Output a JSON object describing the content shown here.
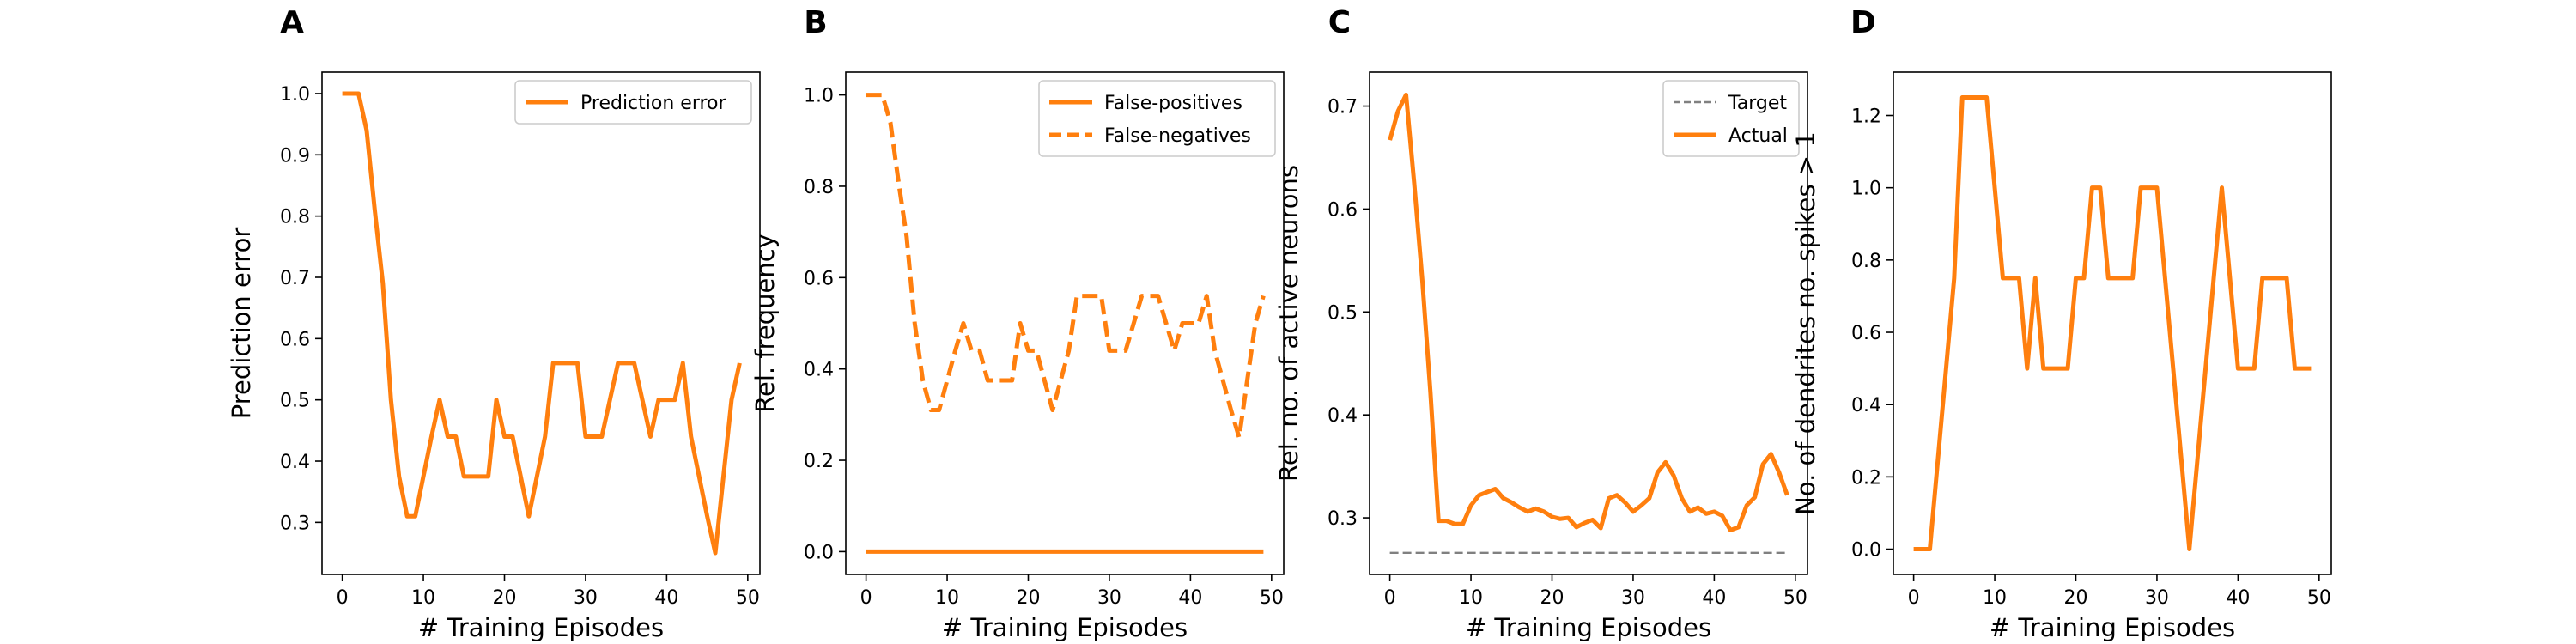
{
  "chart_data": [
    {
      "type": "line",
      "panel": "A",
      "title": "",
      "xlabel": "# Training Episodes",
      "ylabel": "Prediction error",
      "xlim": [
        -2.5,
        51.5
      ],
      "ylim": [
        0.215,
        1.035
      ],
      "xticks": [
        0,
        10,
        20,
        30,
        40,
        50
      ],
      "yticks": [
        0.3,
        0.4,
        0.5,
        0.6,
        0.7,
        0.8,
        0.9,
        1.0
      ],
      "ytick_labels": [
        "0.3",
        "0.4",
        "0.5",
        "0.6",
        "0.7",
        "0.8",
        "0.9",
        "1.0"
      ],
      "legend_placement": "top-right",
      "grid": false,
      "series": [
        {
          "name": "Prediction error",
          "color": "#ff7f0e",
          "style": "solid",
          "x": [
            0,
            1,
            2,
            3,
            4,
            5,
            6,
            7,
            8,
            9,
            10,
            11,
            12,
            13,
            14,
            15,
            16,
            17,
            18,
            19,
            20,
            21,
            22,
            23,
            24,
            25,
            26,
            27,
            28,
            29,
            30,
            31,
            32,
            33,
            34,
            35,
            36,
            37,
            38,
            39,
            40,
            41,
            42,
            43,
            44,
            45,
            46,
            47,
            48,
            49
          ],
          "values": [
            1.0,
            1.0,
            1.0,
            0.94,
            0.81,
            0.69,
            0.5,
            0.375,
            0.31,
            0.31,
            0.375,
            0.44,
            0.5,
            0.44,
            0.44,
            0.375,
            0.375,
            0.375,
            0.375,
            0.5,
            0.44,
            0.44,
            0.375,
            0.31,
            0.375,
            0.44,
            0.56,
            0.56,
            0.56,
            0.56,
            0.44,
            0.44,
            0.44,
            0.5,
            0.56,
            0.56,
            0.56,
            0.5,
            0.44,
            0.5,
            0.5,
            0.5,
            0.56,
            0.44,
            0.375,
            0.31,
            0.25,
            0.375,
            0.5,
            0.56
          ]
        }
      ]
    },
    {
      "type": "line",
      "panel": "B",
      "title": "",
      "xlabel": "# Training Episodes",
      "ylabel": "Rel. frequency",
      "xlim": [
        -2.5,
        51.5
      ],
      "ylim": [
        -0.05,
        1.05
      ],
      "xticks": [
        0,
        10,
        20,
        30,
        40,
        50
      ],
      "yticks": [
        0.0,
        0.2,
        0.4,
        0.6,
        0.8,
        1.0
      ],
      "ytick_labels": [
        "0.0",
        "0.2",
        "0.4",
        "0.6",
        "0.8",
        "1.0"
      ],
      "legend_placement": "top-right",
      "grid": false,
      "series": [
        {
          "name": "False-positives",
          "color": "#ff7f0e",
          "style": "solid",
          "x": [
            0,
            49
          ],
          "values": [
            0.0,
            0.0
          ]
        },
        {
          "name": "False-negatives",
          "color": "#ff7f0e",
          "style": "dashed",
          "x": [
            0,
            1,
            2,
            3,
            4,
            5,
            6,
            7,
            8,
            9,
            10,
            11,
            12,
            13,
            14,
            15,
            16,
            17,
            18,
            19,
            20,
            21,
            22,
            23,
            24,
            25,
            26,
            27,
            28,
            29,
            30,
            31,
            32,
            33,
            34,
            35,
            36,
            37,
            38,
            39,
            40,
            41,
            42,
            43,
            44,
            45,
            46,
            47,
            48,
            49
          ],
          "values": [
            1.0,
            1.0,
            1.0,
            0.94,
            0.81,
            0.69,
            0.5,
            0.375,
            0.31,
            0.31,
            0.375,
            0.44,
            0.5,
            0.44,
            0.44,
            0.375,
            0.375,
            0.375,
            0.375,
            0.5,
            0.44,
            0.44,
            0.375,
            0.31,
            0.375,
            0.44,
            0.56,
            0.56,
            0.56,
            0.56,
            0.44,
            0.44,
            0.44,
            0.5,
            0.56,
            0.56,
            0.56,
            0.5,
            0.44,
            0.5,
            0.5,
            0.5,
            0.56,
            0.44,
            0.375,
            0.31,
            0.25,
            0.375,
            0.5,
            0.56
          ]
        }
      ]
    },
    {
      "type": "line",
      "panel": "C",
      "title": "",
      "xlabel": "# Training Episodes",
      "ylabel": "Rel. no. of active neurons",
      "xlim": [
        -2.5,
        51.5
      ],
      "ylim": [
        0.245,
        0.733
      ],
      "xticks": [
        0,
        10,
        20,
        30,
        40,
        50
      ],
      "yticks": [
        0.3,
        0.4,
        0.5,
        0.6,
        0.7
      ],
      "ytick_labels": [
        "0.3",
        "0.4",
        "0.5",
        "0.6",
        "0.7"
      ],
      "legend_placement": "top-right",
      "grid": false,
      "series": [
        {
          "name": "Target",
          "color": "#808080",
          "style": "dashed",
          "x": [
            0,
            49
          ],
          "values": [
            0.266,
            0.266
          ]
        },
        {
          "name": "Actual",
          "color": "#ff7f0e",
          "style": "solid",
          "x": [
            0,
            1,
            2,
            3,
            4,
            5,
            6,
            7,
            8,
            9,
            10,
            11,
            12,
            13,
            14,
            15,
            16,
            17,
            18,
            19,
            20,
            21,
            22,
            23,
            24,
            25,
            26,
            27,
            28,
            29,
            30,
            31,
            32,
            33,
            34,
            35,
            36,
            37,
            38,
            39,
            40,
            41,
            42,
            43,
            44,
            45,
            46,
            47,
            48,
            49
          ],
          "values": [
            0.667,
            0.695,
            0.711,
            0.625,
            0.531,
            0.422,
            0.297,
            0.297,
            0.294,
            0.294,
            0.312,
            0.322,
            0.325,
            0.328,
            0.319,
            0.315,
            0.31,
            0.306,
            0.309,
            0.306,
            0.301,
            0.299,
            0.3,
            0.291,
            0.295,
            0.298,
            0.29,
            0.319,
            0.322,
            0.315,
            0.306,
            0.312,
            0.319,
            0.344,
            0.354,
            0.341,
            0.319,
            0.306,
            0.31,
            0.304,
            0.306,
            0.302,
            0.288,
            0.291,
            0.312,
            0.32,
            0.352,
            0.362,
            0.344,
            0.322
          ]
        }
      ]
    },
    {
      "type": "line",
      "panel": "D",
      "title": "",
      "xlabel": "# Training Episodes",
      "ylabel": "No. of dendrites no. spikes > 1",
      "xlim": [
        -2.5,
        51.5
      ],
      "ylim": [
        -0.07,
        1.32
      ],
      "xticks": [
        0,
        10,
        20,
        30,
        40,
        50
      ],
      "yticks": [
        0.0,
        0.2,
        0.4,
        0.6,
        0.8,
        1.0,
        1.2
      ],
      "ytick_labels": [
        "0.0",
        "0.2",
        "0.4",
        "0.6",
        "0.8",
        "1.0",
        "1.2"
      ],
      "legend_placement": "none",
      "grid": false,
      "series": [
        {
          "name": "",
          "color": "#ff7f0e",
          "style": "solid",
          "x": [
            0,
            1,
            2,
            3,
            4,
            5,
            6,
            7,
            8,
            9,
            10,
            11,
            12,
            13,
            14,
            15,
            16,
            17,
            18,
            19,
            20,
            21,
            22,
            23,
            24,
            25,
            26,
            27,
            28,
            29,
            30,
            31,
            32,
            33,
            34,
            35,
            36,
            37,
            38,
            39,
            40,
            41,
            42,
            43,
            44,
            45,
            46,
            47,
            48,
            49
          ],
          "values": [
            0.0,
            0.0,
            0.0,
            0.25,
            0.5,
            0.75,
            1.25,
            1.25,
            1.25,
            1.25,
            1.0,
            0.75,
            0.75,
            0.75,
            0.5,
            0.75,
            0.5,
            0.5,
            0.5,
            0.5,
            0.75,
            0.75,
            1.0,
            1.0,
            0.75,
            0.75,
            0.75,
            0.75,
            1.0,
            1.0,
            1.0,
            0.75,
            0.5,
            0.25,
            0.0,
            0.25,
            0.5,
            0.75,
            1.0,
            0.75,
            0.5,
            0.5,
            0.5,
            0.75,
            0.75,
            0.75,
            0.75,
            0.5,
            0.5,
            0.5
          ]
        }
      ]
    }
  ]
}
